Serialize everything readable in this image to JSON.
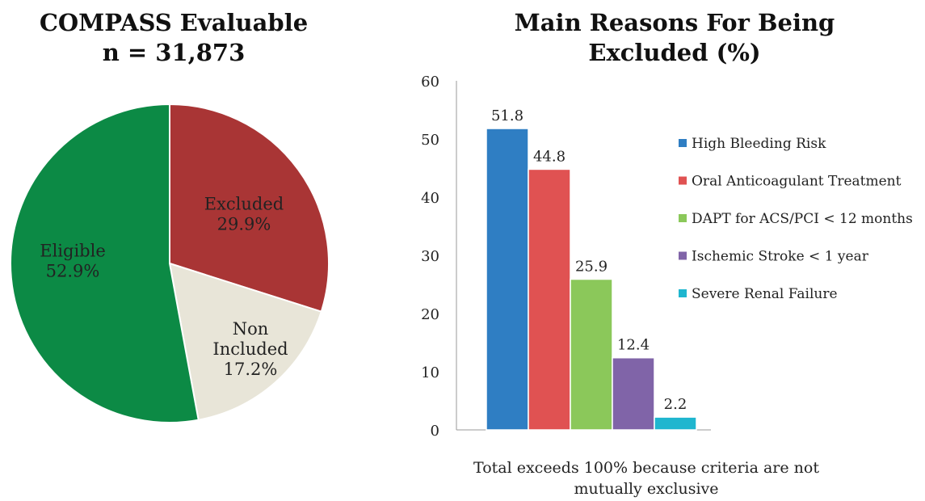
{
  "chart_data": [
    {
      "type": "pie",
      "title_lines": [
        "COMPASS Evaluable",
        "n = 31,873"
      ],
      "slices": [
        {
          "label_lines": [
            "Excluded",
            "29.9%"
          ],
          "value": 29.9,
          "color": "#a93535"
        },
        {
          "label_lines": [
            "Non",
            "Included",
            "17.2%"
          ],
          "value": 17.2,
          "color": "#e8e5d8"
        },
        {
          "label_lines": [
            "Eligible",
            "52.9%"
          ],
          "value": 52.9,
          "color": "#0c8a45"
        }
      ]
    },
    {
      "type": "bar",
      "title_lines": [
        "Main Reasons For Being",
        "Excluded (%)"
      ],
      "ylim": [
        0,
        60
      ],
      "yticks": [
        "0",
        "10",
        "20",
        "30",
        "40",
        "50",
        "60"
      ],
      "series": [
        {
          "name": "High Bleeding Risk",
          "value": 51.8,
          "label": "51.8",
          "color": "#2f7ec3"
        },
        {
          "name": "Oral Anticoagulant Treatment",
          "value": 44.8,
          "label": "44.8",
          "color": "#e05252"
        },
        {
          "name": "DAPT for ACS/PCI < 12 months",
          "value": 25.9,
          "label": "25.9",
          "color": "#8bc85a"
        },
        {
          "name": "Ischemic Stroke < 1 year",
          "value": 12.4,
          "label": "12.4",
          "color": "#8064a8"
        },
        {
          "name": "Severe Renal Failure",
          "value": 2.2,
          "label": "2.2",
          "color": "#1fb6cf"
        }
      ],
      "legend": "right",
      "footnote_lines": [
        "Total exceeds 100% because criteria are not",
        "mutually exclusive"
      ]
    }
  ]
}
